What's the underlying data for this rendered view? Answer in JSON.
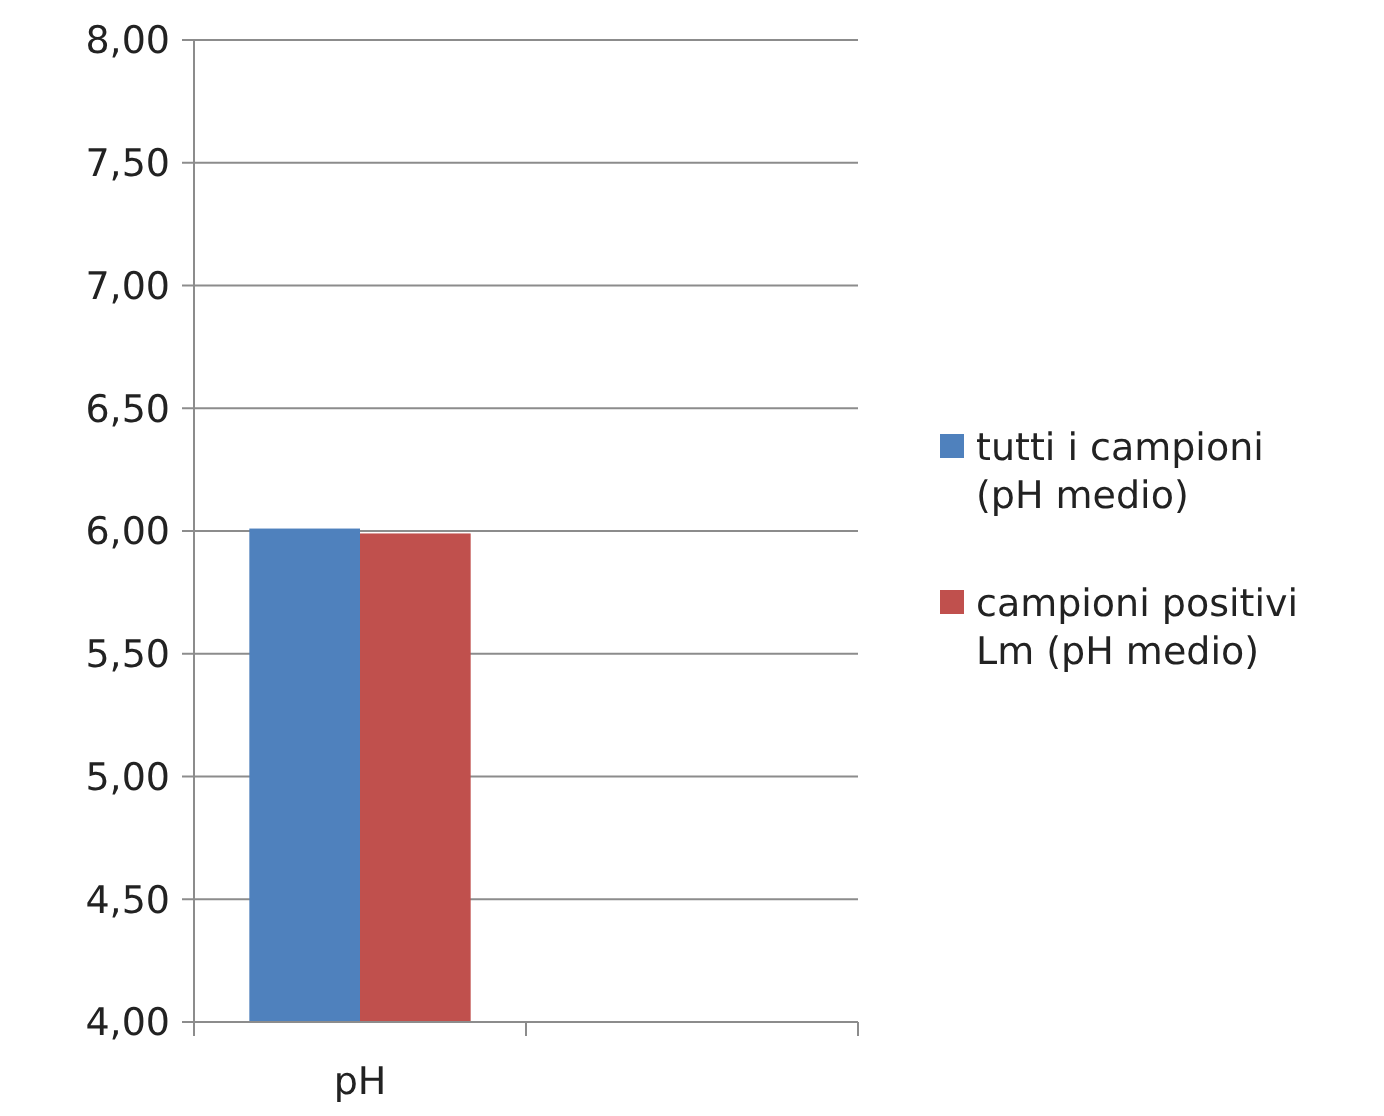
{
  "chart_data": {
    "type": "bar",
    "categories": [
      "pH",
      null
    ],
    "series": [
      {
        "name": "tutti i campioni (pH medio)",
        "color": "#4f81bd",
        "values": [
          6.01,
          null
        ]
      },
      {
        "name": "campioni positivi Lm (pH medio)",
        "color": "#c0504d",
        "values": [
          5.99,
          null
        ]
      }
    ],
    "ylim": [
      4,
      8
    ],
    "yticks": [
      {
        "value": 4,
        "label": "4,00"
      },
      {
        "value": 4.5,
        "label": "4,50"
      },
      {
        "value": 5,
        "label": "5,00"
      },
      {
        "value": 5.5,
        "label": "5,50"
      },
      {
        "value": 6,
        "label": "6,00"
      },
      {
        "value": 6.5,
        "label": "6,50"
      },
      {
        "value": 7,
        "label": "7,00"
      },
      {
        "value": 7.5,
        "label": "7,50"
      },
      {
        "value": 8,
        "label": "8,00"
      }
    ],
    "grid": "y",
    "legend": "right"
  }
}
